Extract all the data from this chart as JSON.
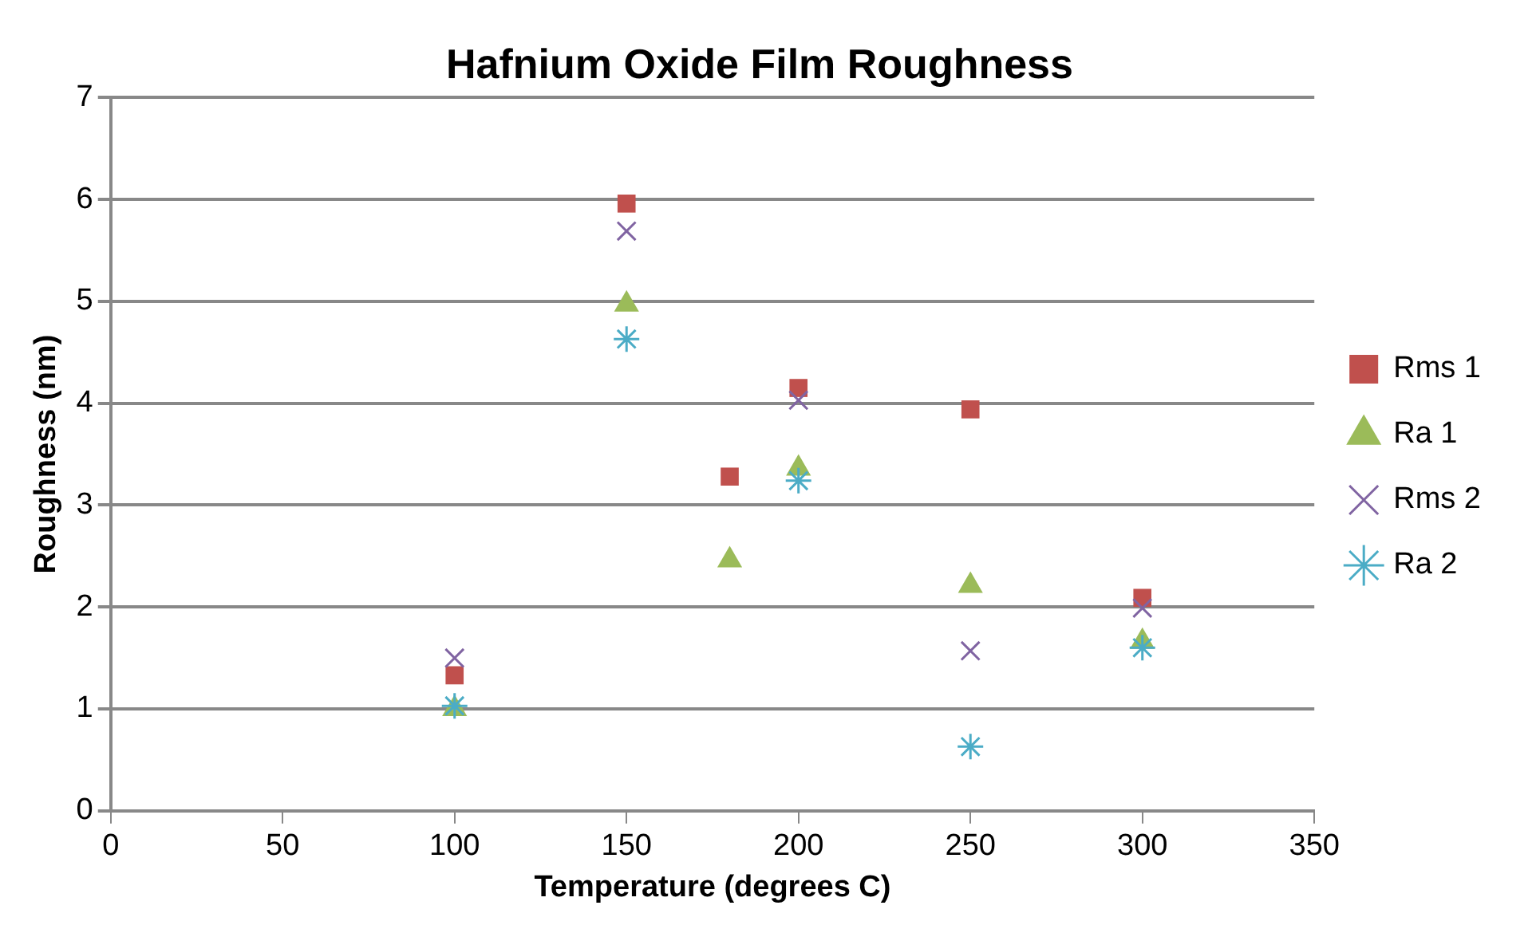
{
  "chart_data": {
    "type": "scatter",
    "title": "Hafnium Oxide Film Roughness",
    "xlabel": "Temperature (degrees C)",
    "ylabel": "Roughness (nm)",
    "xlim": [
      0,
      350
    ],
    "xticks": [
      0,
      50,
      100,
      150,
      200,
      250,
      300,
      350
    ],
    "ylim": [
      0,
      7
    ],
    "yticks": [
      0,
      1,
      2,
      3,
      4,
      5,
      6,
      7
    ],
    "grid": "y",
    "legend": "right",
    "series": [
      {
        "name": "Rms 1",
        "color": "#c0504d",
        "marker": "square",
        "x": [
          100,
          150,
          180,
          200,
          250,
          300
        ],
        "values": [
          1.33,
          5.96,
          3.28,
          4.15,
          3.94,
          2.09
        ]
      },
      {
        "name": "Ra 1",
        "color": "#9bbb59",
        "marker": "triangle",
        "x": [
          100,
          150,
          180,
          200,
          250,
          300
        ],
        "values": [
          1.0,
          4.97,
          2.46,
          3.36,
          2.21,
          1.66
        ]
      },
      {
        "name": "Rms 2",
        "color": "#8064a2",
        "marker": "cross",
        "x": [
          100,
          150,
          200,
          250,
          300
        ],
        "values": [
          1.5,
          5.69,
          4.03,
          1.57,
          1.99
        ]
      },
      {
        "name": "Ra 2",
        "color": "#4bacc6",
        "marker": "cross",
        "x": [
          100,
          150,
          200,
          250,
          300
        ],
        "values": [
          1.03,
          4.63,
          3.24,
          0.63,
          1.6
        ]
      }
    ]
  }
}
